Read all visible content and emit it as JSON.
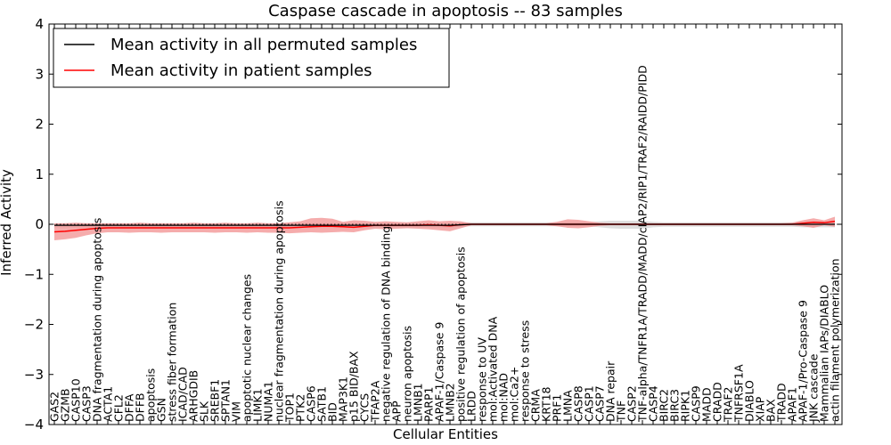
{
  "chart_data": {
    "type": "line",
    "title": "Caspase cascade in apoptosis -- 83 samples",
    "xlabel": "Cellular Entities",
    "ylabel": "Inferred Activity",
    "ylim": [
      -4,
      4
    ],
    "yticks": [
      -4,
      -3,
      -2,
      -1,
      0,
      1,
      2,
      3,
      4
    ],
    "grid": false,
    "legend_position": "top-left",
    "categories": [
      "GAS2",
      "GZMB",
      "CASP10",
      "CASP3",
      "DNA fragmentation during apoptosis",
      "ACTA1",
      "CFL2",
      "DFFA",
      "DFFB",
      "apoptosis",
      "GSN",
      "stress fiber formation",
      "ICAD/CAD",
      "ARHGDIB",
      "SLK",
      "SREBF1",
      "SPTAN1",
      "VIM",
      "apoptotic nuclear changes",
      "LIMK1",
      "NUMA1",
      "nuclear fragmentation during apoptosis",
      "TOP1",
      "PTK2",
      "CASP6",
      "SATB1",
      "BID",
      "MAP3K1",
      "p15 BID/BAX",
      "CYCS",
      "TFAP2A",
      "negative regulation of DNA binding",
      "APP",
      "neuron apoptosis",
      "LMNB1",
      "PARP1",
      "APAF-1/Caspase 9",
      "LMNB2",
      "positive regulation of apoptosis",
      "LRDD",
      "response to UV",
      "mol:Activated DNA",
      "mol:NAD",
      "mol:Ca2+",
      "response to stress",
      "CRMA",
      "KRT18",
      "PRF1",
      "LMNA",
      "CASP8",
      "CASP1",
      "CASP7",
      "DNA repair",
      "TNF",
      "CASP2",
      "TNF-alpha/TNFR1A/TRADD/MADD/cIAP2/RIP1/TRAF2/RAIDD/PIDD",
      "CASP4",
      "BIRC2",
      "BIRC3",
      "RIPK1",
      "CASP9",
      "MADD",
      "CRADD",
      "TRAF2",
      "TNFRSF1A",
      "DIABLO",
      "XIAP",
      "BAX",
      "TRADD",
      "APAF1",
      "APAF-1/Pro-Caspase 9",
      "JNK cascade",
      "Mammalian IAPs/DIABLO",
      "actin filament polymerization"
    ],
    "series": [
      {
        "name": "Mean activity in all permuted samples",
        "color": "#000000",
        "band_color": "#c8c8c8",
        "values": [
          -0.02,
          -0.02,
          -0.02,
          -0.02,
          -0.02,
          -0.02,
          -0.02,
          -0.02,
          -0.02,
          -0.02,
          -0.02,
          -0.02,
          -0.02,
          -0.02,
          -0.02,
          -0.02,
          -0.02,
          -0.02,
          -0.02,
          -0.02,
          -0.02,
          -0.02,
          -0.02,
          -0.02,
          -0.02,
          -0.02,
          -0.02,
          -0.02,
          -0.02,
          -0.02,
          -0.02,
          -0.02,
          -0.02,
          -0.02,
          -0.02,
          -0.02,
          -0.02,
          -0.02,
          -0.01,
          0,
          0,
          0,
          0,
          0,
          0,
          0,
          0,
          0,
          0,
          0,
          0,
          0,
          0,
          0,
          0,
          0,
          0,
          0,
          0,
          0,
          0,
          0,
          0,
          0,
          0,
          0,
          0,
          0,
          0,
          0,
          0,
          0,
          0,
          0
        ],
        "lower": [
          -0.06,
          -0.06,
          -0.06,
          -0.06,
          -0.06,
          -0.06,
          -0.06,
          -0.06,
          -0.06,
          -0.06,
          -0.06,
          -0.06,
          -0.06,
          -0.06,
          -0.06,
          -0.06,
          -0.06,
          -0.06,
          -0.06,
          -0.06,
          -0.06,
          -0.06,
          -0.06,
          -0.06,
          -0.06,
          -0.06,
          -0.06,
          -0.06,
          -0.06,
          -0.06,
          -0.06,
          -0.06,
          -0.06,
          -0.06,
          -0.06,
          -0.06,
          -0.06,
          -0.06,
          -0.05,
          -0.04,
          -0.04,
          -0.04,
          -0.04,
          -0.04,
          -0.04,
          -0.04,
          -0.04,
          -0.04,
          -0.04,
          -0.04,
          -0.04,
          -0.06,
          -0.08,
          -0.09,
          -0.09,
          -0.09,
          -0.06,
          -0.05,
          -0.05,
          -0.05,
          -0.05,
          -0.05,
          -0.05,
          -0.05,
          -0.05,
          -0.05,
          -0.05,
          -0.05,
          -0.05,
          -0.05,
          -0.06,
          -0.06,
          -0.06,
          -0.06
        ],
        "upper": [
          0.02,
          0.02,
          0.02,
          0.02,
          0.02,
          0.02,
          0.02,
          0.02,
          0.02,
          0.02,
          0.02,
          0.02,
          0.02,
          0.02,
          0.02,
          0.02,
          0.02,
          0.02,
          0.02,
          0.02,
          0.02,
          0.02,
          0.02,
          0.02,
          0.02,
          0.02,
          0.02,
          0.02,
          0.02,
          0.02,
          0.02,
          0.02,
          0.02,
          0.02,
          0.02,
          0.02,
          0.02,
          0.02,
          0.03,
          0.04,
          0.04,
          0.04,
          0.04,
          0.04,
          0.04,
          0.04,
          0.04,
          0.04,
          0.04,
          0.04,
          0.04,
          0.06,
          0.07,
          0.07,
          0.07,
          0.07,
          0.05,
          0.04,
          0.04,
          0.04,
          0.04,
          0.04,
          0.04,
          0.04,
          0.04,
          0.04,
          0.04,
          0.04,
          0.04,
          0.04,
          0.05,
          0.05,
          0.05,
          0.05
        ]
      },
      {
        "name": "Mean activity in patient samples",
        "color": "#ff0000",
        "band_color": "#f08080",
        "values": [
          -0.15,
          -0.14,
          -0.12,
          -0.1,
          -0.08,
          -0.07,
          -0.07,
          -0.07,
          -0.07,
          -0.07,
          -0.07,
          -0.07,
          -0.07,
          -0.07,
          -0.07,
          -0.07,
          -0.07,
          -0.07,
          -0.07,
          -0.07,
          -0.07,
          -0.07,
          -0.07,
          -0.06,
          -0.05,
          -0.04,
          -0.04,
          -0.05,
          -0.06,
          -0.04,
          -0.02,
          -0.02,
          -0.02,
          -0.02,
          -0.02,
          -0.01,
          -0.02,
          -0.03,
          -0.01,
          0,
          0,
          0,
          0,
          0,
          0,
          0,
          0,
          0,
          0,
          0,
          0,
          0,
          0,
          0,
          0,
          0,
          0,
          0,
          0,
          0,
          0,
          0,
          0,
          0,
          0,
          0,
          0,
          0,
          0,
          0,
          0.02,
          0.04,
          0.03,
          0.06
        ],
        "lower": [
          -0.32,
          -0.3,
          -0.27,
          -0.22,
          -0.18,
          -0.16,
          -0.16,
          -0.17,
          -0.16,
          -0.16,
          -0.17,
          -0.16,
          -0.16,
          -0.16,
          -0.16,
          -0.17,
          -0.16,
          -0.16,
          -0.17,
          -0.16,
          -0.17,
          -0.17,
          -0.18,
          -0.17,
          -0.16,
          -0.17,
          -0.16,
          -0.15,
          -0.16,
          -0.12,
          -0.09,
          -0.1,
          -0.09,
          -0.08,
          -0.09,
          -0.1,
          -0.12,
          -0.14,
          -0.08,
          -0.02,
          -0.02,
          -0.02,
          -0.02,
          -0.02,
          -0.02,
          -0.02,
          -0.02,
          -0.04,
          -0.07,
          -0.08,
          -0.06,
          -0.03,
          -0.02,
          -0.02,
          -0.02,
          -0.02,
          -0.02,
          -0.02,
          -0.02,
          -0.02,
          -0.02,
          -0.02,
          -0.02,
          -0.02,
          -0.02,
          -0.02,
          -0.02,
          -0.02,
          -0.02,
          -0.02,
          -0.04,
          -0.07,
          -0.02,
          -0.05
        ],
        "upper": [
          0.02,
          0.02,
          0.03,
          0.02,
          0.02,
          0.02,
          0.02,
          0.02,
          0.03,
          0.02,
          0.02,
          0.02,
          0.02,
          0.03,
          0.02,
          0.02,
          0.03,
          0.02,
          0.02,
          0.03,
          0.02,
          0.02,
          0.04,
          0.06,
          0.12,
          0.13,
          0.11,
          0.05,
          0.08,
          0.07,
          0.05,
          0.06,
          0.05,
          0.04,
          0.06,
          0.08,
          0.06,
          0.07,
          0.06,
          0.02,
          0.02,
          0.02,
          0.02,
          0.02,
          0.02,
          0.02,
          0.02,
          0.05,
          0.1,
          0.09,
          0.06,
          0.03,
          0.02,
          0.02,
          0.02,
          0.02,
          0.02,
          0.02,
          0.02,
          0.02,
          0.02,
          0.02,
          0.02,
          0.02,
          0.02,
          0.02,
          0.02,
          0.02,
          0.02,
          0.03,
          0.08,
          0.12,
          0.08,
          0.15
        ]
      }
    ]
  }
}
